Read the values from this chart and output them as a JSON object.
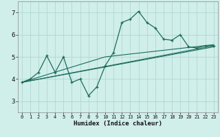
{
  "xlabel": "Humidex (Indice chaleur)",
  "bg_color": "#d0eeea",
  "line_color": "#1a6b5a",
  "grid_color": "#aad4ce",
  "xlim": [
    -0.5,
    23.5
  ],
  "ylim": [
    2.5,
    7.5
  ],
  "xticks": [
    0,
    1,
    2,
    3,
    4,
    5,
    6,
    7,
    8,
    9,
    10,
    11,
    12,
    13,
    14,
    15,
    16,
    17,
    18,
    19,
    20,
    21,
    22,
    23
  ],
  "yticks": [
    3,
    4,
    5,
    6,
    7
  ],
  "main_x": [
    0,
    1,
    2,
    3,
    4,
    5,
    6,
    7,
    8,
    9,
    10,
    11,
    12,
    13,
    14,
    15,
    16,
    17,
    18,
    19,
    20,
    21,
    22,
    23
  ],
  "main_y": [
    3.85,
    4.0,
    4.3,
    5.05,
    4.3,
    5.0,
    3.85,
    4.0,
    3.25,
    3.65,
    4.6,
    5.2,
    6.55,
    6.7,
    7.05,
    6.55,
    6.3,
    5.8,
    5.75,
    6.0,
    5.45,
    5.4,
    5.5,
    5.5
  ],
  "trend_lines": [
    {
      "x": [
        0,
        10,
        23
      ],
      "y": [
        3.85,
        5.0,
        5.55
      ]
    },
    {
      "x": [
        0,
        23
      ],
      "y": [
        3.85,
        5.5
      ]
    },
    {
      "x": [
        0,
        23
      ],
      "y": [
        3.85,
        5.45
      ]
    }
  ]
}
